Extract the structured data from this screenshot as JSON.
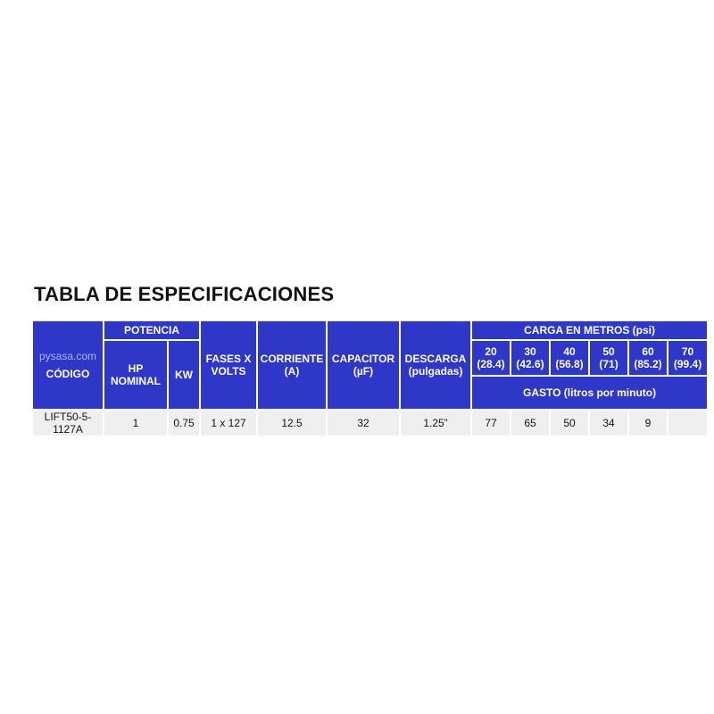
{
  "title": "TABLA DE ESPECIFICACIONES",
  "table": {
    "watermark": "pysasa.com",
    "headers": {
      "codigo": "CÓDIGO",
      "potencia": "POTENCIA",
      "hp": "HP NOMINAL",
      "kw": "KW",
      "fases": "FASES X VOLTS",
      "corriente": "CORRIENTE (A)",
      "capacitor": "CAPACITOR (µF)",
      "descarga": "DESCARGA (pulgadas)",
      "carga": "CARGA EN METROS (psi)",
      "carga_cols": [
        "20 (28.4)",
        "30 (42.6)",
        "40 (56.8)",
        "50 (71)",
        "60 (85.2)",
        "70 (99.4)"
      ],
      "gasto": "GASTO (litros por minuto)"
    },
    "rows": [
      [
        "LIFT50-5-1127A",
        "1",
        "0.75",
        "1 x 127",
        "12.5",
        "32",
        "1.25”",
        "77",
        "65",
        "50",
        "34",
        "9"
      ]
    ]
  }
}
